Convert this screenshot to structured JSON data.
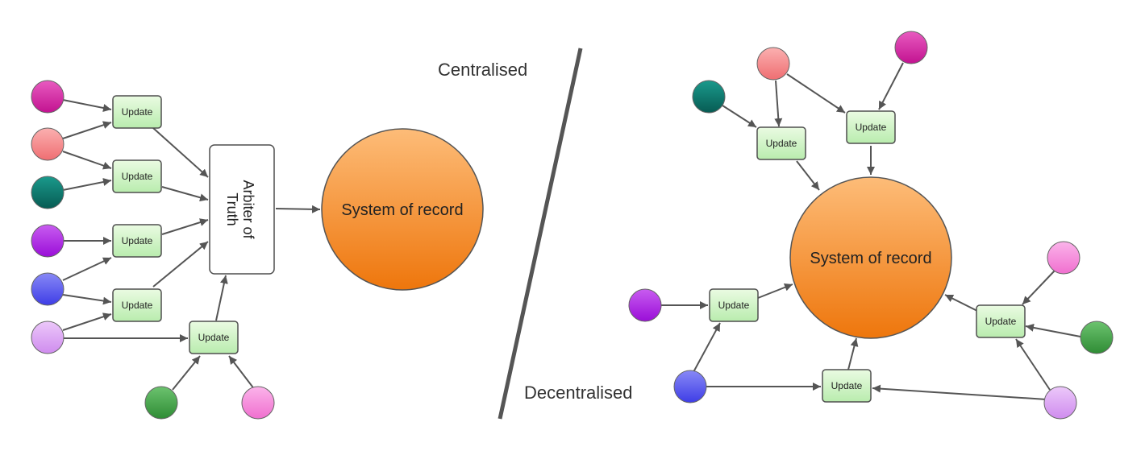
{
  "labels": {
    "centralised": "Centralised",
    "decentralised": "Decentralised",
    "system_of_record": "System of record",
    "arbiter_line1": "Arbiter of",
    "arbiter_line2": "Truth",
    "update": "Update"
  },
  "colors": {
    "magenta": "#d81ea0",
    "salmon": "#f3868a",
    "teal": "#0e7a70",
    "purple": "#b022e6",
    "blue": "#5a59ef",
    "lavender": "#d9a2f2",
    "green": "#3f9f45",
    "pink": "#f58ad8",
    "update_fill": "#d6f5c8",
    "update_stroke": "#4f4f4f",
    "system_top": "#fbb870",
    "system_bottom": "#f07d14",
    "arrow": "#555555"
  }
}
